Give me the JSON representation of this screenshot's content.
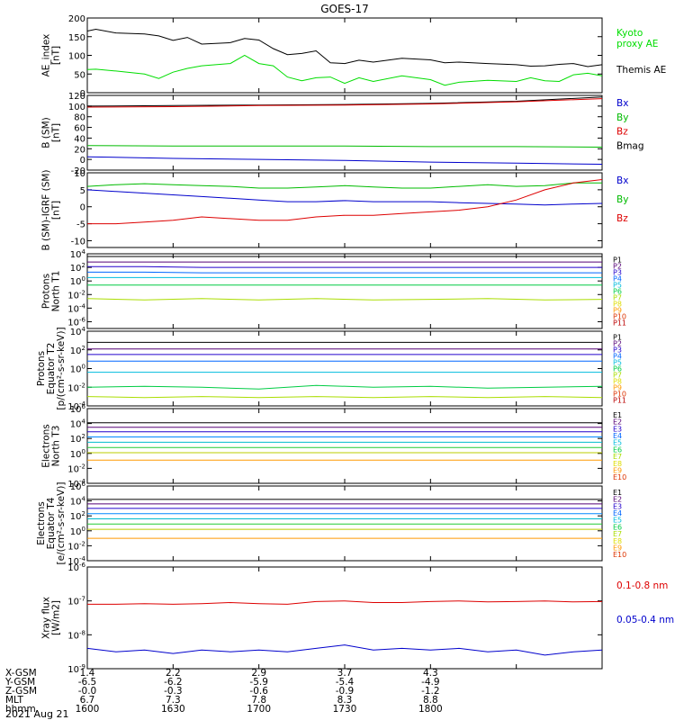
{
  "title": "GOES-17",
  "footer_date": "2021 Aug 21",
  "orbit": {
    "labels": [
      "X-GSM",
      "Y-GSM",
      "Z-GSM",
      "MLT",
      "hhmm"
    ],
    "columns": [
      [
        "1.4",
        "-6.5",
        "-0.0",
        "6.7",
        "1600"
      ],
      [
        "2.2",
        "-6.2",
        "-0.3",
        "7.3",
        "1630"
      ],
      [
        "2.9",
        "-5.9",
        "-0.6",
        "7.8",
        "1700"
      ],
      [
        "3.7",
        "-5.4",
        "-0.9",
        "8.3",
        "1730"
      ],
      [
        "4.3",
        "-4.9",
        "-1.2",
        "8.8",
        "1800"
      ]
    ]
  },
  "chart_data": [
    {
      "type": "line",
      "ylabel": [
        "AE_index",
        "[nT]"
      ],
      "ylim": [
        0,
        200
      ],
      "yticks": [
        "0",
        "50",
        "100",
        "150",
        "200"
      ],
      "legend": [
        {
          "text": "Kyoto",
          "color": "#00dd00"
        },
        {
          "text": "proxy AE",
          "color": "#00dd00"
        },
        {
          "text": "Themis AE",
          "color": "#000000"
        }
      ],
      "x": [
        0,
        3,
        10,
        20,
        25,
        30,
        35,
        40,
        50,
        55,
        60,
        65,
        70,
        75,
        80,
        85,
        90,
        95,
        100,
        110,
        120,
        125,
        130,
        140,
        150,
        155,
        160,
        165,
        170,
        175,
        180
      ],
      "series": [
        {
          "name": "Themis AE",
          "color": "#000000",
          "values": [
            165,
            170,
            160,
            157,
            152,
            140,
            148,
            130,
            134,
            145,
            141,
            118,
            102,
            105,
            112,
            80,
            78,
            87,
            82,
            92,
            88,
            80,
            82,
            78,
            75,
            71,
            72,
            76,
            78,
            70,
            75
          ]
        },
        {
          "name": "Kyoto",
          "color": "#00dd00",
          "values": [
            62,
            63,
            58,
            50,
            38,
            55,
            65,
            72,
            78,
            100,
            78,
            72,
            42,
            32,
            40,
            42,
            25,
            40,
            30,
            45,
            35,
            20,
            28,
            33,
            30,
            40,
            32,
            30,
            48,
            52,
            45
          ]
        }
      ]
    },
    {
      "type": "line",
      "ylabel": [
        "B (SM)",
        "[nT]"
      ],
      "ylim": [
        -20,
        120
      ],
      "yticks": [
        "-20",
        "0",
        "20",
        "40",
        "60",
        "80",
        "100",
        "120"
      ],
      "legend": [
        {
          "text": "Bx",
          "color": "#0000cc"
        },
        {
          "text": "By",
          "color": "#00bb00"
        },
        {
          "text": "Bz",
          "color": "#dd0000"
        },
        {
          "text": "Bmag",
          "color": "#000000"
        }
      ],
      "x": [
        0,
        30,
        60,
        90,
        120,
        150,
        180
      ],
      "series": [
        {
          "name": "Bmag",
          "color": "#000000",
          "values": [
            100,
            101,
            102,
            103,
            105,
            109,
            117
          ]
        },
        {
          "name": "Bz",
          "color": "#dd0000",
          "values": [
            98,
            99,
            101,
            102,
            104,
            108,
            114
          ]
        },
        {
          "name": "By",
          "color": "#00bb00",
          "values": [
            26,
            25,
            25,
            25,
            24,
            24,
            23
          ]
        },
        {
          "name": "Bx",
          "color": "#0000cc",
          "values": [
            5,
            2,
            0,
            -2,
            -5,
            -7,
            -9
          ]
        }
      ]
    },
    {
      "type": "line",
      "ylabel": [
        "B (SM)-IGRF (SM)",
        "[nT]"
      ],
      "ylim": [
        -12,
        10
      ],
      "yticks": [
        "-10",
        "-5",
        "0",
        "5",
        "10"
      ],
      "legend": [
        {
          "text": "Bx",
          "color": "#0000cc"
        },
        {
          "text": "By",
          "color": "#00bb00"
        },
        {
          "text": "Bz",
          "color": "#dd0000"
        }
      ],
      "x": [
        0,
        10,
        20,
        30,
        40,
        50,
        60,
        70,
        80,
        90,
        100,
        110,
        120,
        130,
        140,
        150,
        160,
        170,
        180
      ],
      "series": [
        {
          "name": "By",
          "color": "#00bb00",
          "values": [
            6,
            6.5,
            6.8,
            6.5,
            6.2,
            6.0,
            5.5,
            5.5,
            5.8,
            6.2,
            5.8,
            5.5,
            5.5,
            6.0,
            6.5,
            6.0,
            6.2,
            7.0,
            7.0
          ]
        },
        {
          "name": "Bx",
          "color": "#0000cc",
          "values": [
            5,
            4.5,
            4,
            3.5,
            3,
            2.5,
            2,
            1.5,
            1.5,
            1.8,
            1.5,
            1.5,
            1.5,
            1.2,
            1.0,
            0.8,
            0.5,
            0.8,
            1.0
          ]
        },
        {
          "name": "Bz",
          "color": "#dd0000",
          "values": [
            -5,
            -5,
            -4.5,
            -4,
            -3,
            -3.5,
            -4,
            -4,
            -3,
            -2.5,
            -2.5,
            -2,
            -1.5,
            -1,
            0,
            2,
            5,
            7,
            8
          ]
        }
      ]
    },
    {
      "type": "line",
      "log": true,
      "ylabel": [
        "Protons",
        "North T1"
      ],
      "ylim": [
        -7,
        4
      ],
      "yticks": [
        "10^4",
        "10^2",
        "10^0",
        "10^-2",
        "10^-4",
        "10^-6"
      ],
      "channels": [
        "P1",
        "P2",
        "P3",
        "P4",
        "P5",
        "P6",
        "P7",
        "P8",
        "P9",
        "P10",
        "P11"
      ],
      "x": [
        0,
        20,
        40,
        60,
        80,
        100,
        120,
        140,
        160,
        180
      ],
      "series": [
        {
          "name": "P1",
          "color": "#000000",
          "values": [
            3.6,
            3.6,
            3.6,
            3.6,
            3.6,
            3.6,
            3.6,
            3.6,
            3.6,
            3.6
          ]
        },
        {
          "name": "P2",
          "color": "#550077",
          "values": [
            2.8,
            2.8,
            2.8,
            2.8,
            2.8,
            2.8,
            2.8,
            2.8,
            2.8,
            2.8
          ]
        },
        {
          "name": "P3",
          "color": "#2200cc",
          "values": [
            2.1,
            2.1,
            2.0,
            2.0,
            2.0,
            2.0,
            2.0,
            2.0,
            2.0,
            2.0
          ]
        },
        {
          "name": "P4",
          "color": "#0066ff",
          "values": [
            1.3,
            1.3,
            1.2,
            1.2,
            1.2,
            1.2,
            1.2,
            1.2,
            1.2,
            1.2
          ]
        },
        {
          "name": "P5",
          "color": "#00bbdd",
          "values": [
            0.5,
            0.5,
            0.5,
            0.5,
            0.5,
            0.5,
            0.5,
            0.5,
            0.5,
            0.5
          ]
        },
        {
          "name": "P6",
          "color": "#00cc44",
          "values": [
            -0.6,
            -0.6,
            -0.6,
            -0.6,
            -0.6,
            -0.6,
            -0.6,
            -0.6,
            -0.6,
            -0.6
          ]
        },
        {
          "name": "P7",
          "color": "#aadd00",
          "values": [
            -2.6,
            -2.8,
            -2.6,
            -2.8,
            -2.6,
            -2.8,
            -2.7,
            -2.6,
            -2.8,
            -2.7
          ]
        }
      ]
    },
    {
      "type": "line",
      "log": true,
      "ylabel": [
        "Protons",
        "Equator T2",
        "[p/(cm²-s-sr-keV)]"
      ],
      "ylim": [
        -4,
        4
      ],
      "yticks": [
        "10^4",
        "10^2",
        "10^0",
        "10^-2",
        "10^-4"
      ],
      "channels": [
        "P1",
        "P2",
        "P3",
        "P4",
        "P5",
        "P6",
        "P7",
        "P8",
        "P9",
        "P10",
        "P11"
      ],
      "x": [
        0,
        20,
        40,
        60,
        80,
        100,
        120,
        140,
        160,
        180
      ],
      "series": [
        {
          "name": "P1",
          "color": "#000000",
          "values": [
            2.8,
            2.8,
            2.8,
            2.8,
            2.8,
            2.8,
            2.8,
            2.8,
            2.8,
            2.8
          ]
        },
        {
          "name": "P2",
          "color": "#550077",
          "values": [
            2.1,
            2.1,
            2.1,
            2.1,
            2.1,
            2.1,
            2.1,
            2.1,
            2.1,
            2.1
          ]
        },
        {
          "name": "P3",
          "color": "#2200cc",
          "values": [
            1.5,
            1.5,
            1.5,
            1.5,
            1.5,
            1.5,
            1.5,
            1.5,
            1.5,
            1.5
          ]
        },
        {
          "name": "P4",
          "color": "#0066ff",
          "values": [
            0.8,
            0.8,
            0.8,
            0.8,
            0.8,
            0.8,
            0.8,
            0.8,
            0.8,
            0.8
          ]
        },
        {
          "name": "P5",
          "color": "#00bbdd",
          "values": [
            -0.4,
            -0.4,
            -0.4,
            -0.4,
            -0.4,
            -0.4,
            -0.4,
            -0.4,
            -0.4,
            -0.4
          ]
        },
        {
          "name": "P6",
          "color": "#00cc44",
          "values": [
            -2.0,
            -1.9,
            -2.0,
            -2.2,
            -1.8,
            -2.0,
            -1.9,
            -2.1,
            -2.0,
            -1.9
          ]
        },
        {
          "name": "P7",
          "color": "#aadd00",
          "values": [
            -3.0,
            -3.1,
            -3.0,
            -3.1,
            -3.0,
            -3.1,
            -3.0,
            -3.1,
            -3.0,
            -3.1
          ]
        }
      ]
    },
    {
      "type": "line",
      "log": true,
      "ylabel": [
        "Electrons",
        "North T3"
      ],
      "ylim": [
        -4,
        6
      ],
      "yticks": [
        "10^6",
        "10^4",
        "10^2",
        "10^0",
        "10^-2",
        "10^-4"
      ],
      "channels": [
        "E1",
        "E2",
        "E3",
        "E4",
        "E5",
        "E6",
        "E7",
        "E8",
        "E9",
        "E10"
      ],
      "x": [
        0,
        30,
        60,
        90,
        120,
        150,
        180
      ],
      "series": [
        {
          "name": "E1",
          "color": "#000000",
          "values": [
            4.1,
            4.1,
            4.1,
            4.1,
            4.1,
            4.1,
            4.1
          ]
        },
        {
          "name": "E2",
          "color": "#550077",
          "values": [
            3.5,
            3.5,
            3.5,
            3.5,
            3.5,
            3.5,
            3.5
          ]
        },
        {
          "name": "E3",
          "color": "#2200cc",
          "values": [
            2.9,
            2.9,
            2.9,
            2.9,
            2.9,
            2.9,
            2.9
          ]
        },
        {
          "name": "E4",
          "color": "#0088ff",
          "values": [
            2.2,
            2.2,
            2.2,
            2.2,
            2.2,
            2.2,
            2.2
          ]
        },
        {
          "name": "E5",
          "color": "#00bbcc",
          "values": [
            1.5,
            1.5,
            1.5,
            1.5,
            1.5,
            1.5,
            1.5
          ]
        },
        {
          "name": "E6",
          "color": "#22cc33",
          "values": [
            0.8,
            0.8,
            0.8,
            0.8,
            0.8,
            0.8,
            0.8
          ]
        },
        {
          "name": "E7",
          "color": "#bbcc00",
          "values": [
            0.1,
            0.1,
            0.1,
            0.1,
            0.1,
            0.1,
            0.1
          ]
        },
        {
          "name": "E8",
          "color": "#ff9900",
          "values": [
            -0.9,
            -0.9,
            -0.9,
            -0.9,
            -0.9,
            -0.9,
            -0.9
          ]
        }
      ]
    },
    {
      "type": "line",
      "log": true,
      "ylabel": [
        "Electrons",
        "Equator T4",
        "[e/(cm²-s-sr-keV)]"
      ],
      "ylim": [
        -4,
        6
      ],
      "yticks": [
        "10^6",
        "10^4",
        "10^2",
        "10^0",
        "10^-2",
        "10^-4"
      ],
      "channels": [
        "E1",
        "E2",
        "E3",
        "E4",
        "E5",
        "E6",
        "E7",
        "E8",
        "E9",
        "E10"
      ],
      "x": [
        0,
        30,
        60,
        90,
        120,
        150,
        180
      ],
      "series": [
        {
          "name": "E1",
          "color": "#000000",
          "values": [
            4.2,
            4.2,
            4.2,
            4.2,
            4.2,
            4.2,
            4.2
          ]
        },
        {
          "name": "E2",
          "color": "#550077",
          "values": [
            3.6,
            3.6,
            3.6,
            3.6,
            3.6,
            3.6,
            3.6
          ]
        },
        {
          "name": "E3",
          "color": "#2200cc",
          "values": [
            3.0,
            3.0,
            3.0,
            3.0,
            3.0,
            3.0,
            3.0
          ]
        },
        {
          "name": "E4",
          "color": "#0088ff",
          "values": [
            2.3,
            2.3,
            2.3,
            2.3,
            2.3,
            2.3,
            2.3
          ]
        },
        {
          "name": "E5",
          "color": "#00bbcc",
          "values": [
            1.6,
            1.6,
            1.6,
            1.6,
            1.6,
            1.6,
            1.6
          ]
        },
        {
          "name": "E6",
          "color": "#22cc33",
          "values": [
            0.9,
            0.9,
            0.9,
            0.9,
            0.9,
            0.9,
            0.9
          ]
        },
        {
          "name": "E7",
          "color": "#bbcc00",
          "values": [
            0.2,
            0.2,
            0.2,
            0.2,
            0.2,
            0.2,
            0.2
          ]
        },
        {
          "name": "E8",
          "color": "#ff9900",
          "values": [
            -1.0,
            -1.0,
            -1.0,
            -1.0,
            -1.0,
            -1.0,
            -1.0
          ]
        }
      ]
    },
    {
      "type": "line",
      "log": true,
      "ylabel": [
        "Xray flux",
        "[W/m2]"
      ],
      "ylim": [
        -9,
        -6
      ],
      "yticks": [
        "10^-6",
        "10^-7",
        "10^-8",
        "10^-9"
      ],
      "legend": [
        {
          "text": "0.1-0.8 nm",
          "color": "#dd0000"
        },
        {
          "text": "0.05-0.4 nm",
          "color": "#0000cc"
        }
      ],
      "x": [
        0,
        10,
        20,
        30,
        40,
        50,
        60,
        70,
        80,
        90,
        100,
        110,
        120,
        130,
        140,
        150,
        160,
        170,
        180
      ],
      "series": [
        {
          "name": "0.1-0.8 nm",
          "color": "#dd0000",
          "values": [
            -7.1,
            -7.1,
            -7.08,
            -7.1,
            -7.08,
            -7.05,
            -7.08,
            -7.1,
            -7.02,
            -7.0,
            -7.05,
            -7.05,
            -7.02,
            -7.0,
            -7.03,
            -7.02,
            -7.0,
            -7.03,
            -7.02
          ]
        },
        {
          "name": "0.05-0.4 nm",
          "color": "#0000cc",
          "values": [
            -8.4,
            -8.5,
            -8.45,
            -8.55,
            -8.45,
            -8.5,
            -8.45,
            -8.5,
            -8.4,
            -8.3,
            -8.45,
            -8.4,
            -8.45,
            -8.4,
            -8.5,
            -8.45,
            -8.6,
            -8.5,
            -8.45
          ]
        }
      ]
    }
  ]
}
